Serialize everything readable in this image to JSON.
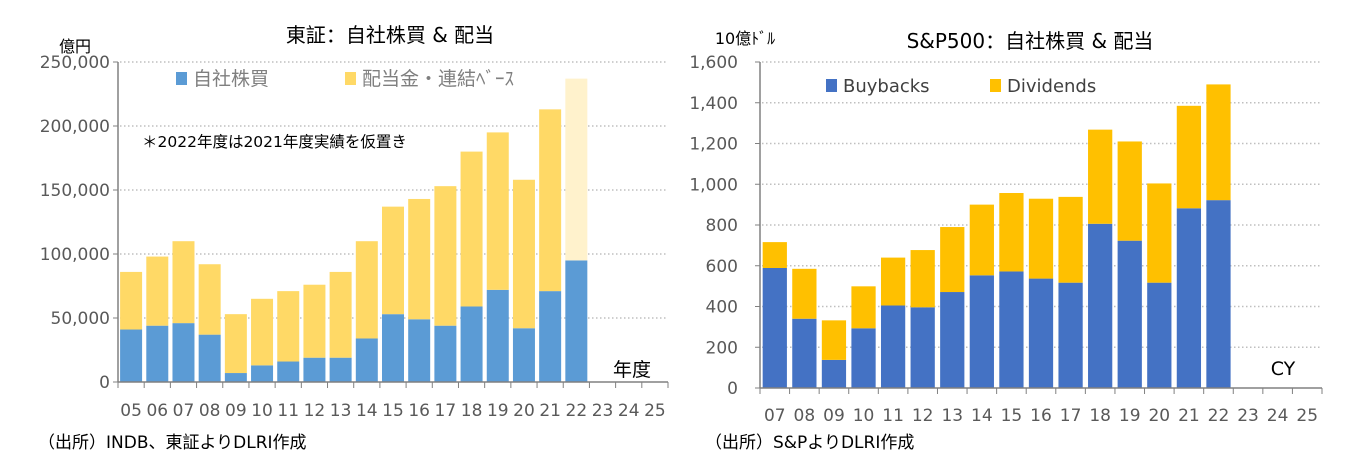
{
  "chart_data": [
    {
      "type": "bar",
      "stacked": true,
      "title": "東証：自社株買 & 配当",
      "ylabel": "億円",
      "xlabel": "年度",
      "note": "＊2022年度は2021年度実績を仮置き",
      "source": "（出所）INDB、東証よりDLRI作成",
      "ylim": [
        0,
        250000
      ],
      "yticks": [
        "0",
        "50,000",
        "100,000",
        "150,000",
        "200,000",
        "250,000"
      ],
      "ytick_values": [
        0,
        50000,
        100000,
        150000,
        200000,
        250000
      ],
      "grid": true,
      "legend": "top",
      "categories": [
        "05",
        "06",
        "07",
        "08",
        "09",
        "10",
        "11",
        "12",
        "13",
        "14",
        "15",
        "16",
        "17",
        "18",
        "19",
        "20",
        "21",
        "22",
        "23",
        "24",
        "25"
      ],
      "series": [
        {
          "name": "自社株買",
          "color": "#5B9BD5",
          "values": [
            41000,
            44000,
            46000,
            37000,
            7000,
            13000,
            16000,
            19000,
            19000,
            34000,
            53000,
            49000,
            44000,
            59000,
            72000,
            42000,
            71000,
            95000,
            null,
            null,
            null
          ]
        },
        {
          "name": "配当金・連結ﾍﾞｰｽ",
          "color": "#FFD966",
          "placeholder_color": "#FFF2CC",
          "values": [
            45000,
            54000,
            64000,
            55000,
            46000,
            52000,
            55000,
            57000,
            67000,
            76000,
            84000,
            94000,
            109000,
            121000,
            123000,
            116000,
            142000,
            142000,
            null,
            null,
            null
          ]
        }
      ]
    },
    {
      "type": "bar",
      "stacked": true,
      "title": "S&P500：自社株買 & 配当",
      "ylabel": "10億ﾄﾞﾙ",
      "xlabel": "CY",
      "source": "（出所）S&PよりDLRI作成",
      "ylim": [
        0,
        1600
      ],
      "yticks": [
        "0",
        "200",
        "400",
        "600",
        "800",
        "1,000",
        "1,200",
        "1,400",
        "1,600"
      ],
      "ytick_values": [
        0,
        200,
        400,
        600,
        800,
        1000,
        1200,
        1400,
        1600
      ],
      "grid": true,
      "legend": "top",
      "categories": [
        "07",
        "08",
        "09",
        "10",
        "11",
        "12",
        "13",
        "14",
        "15",
        "16",
        "17",
        "18",
        "19",
        "20",
        "21",
        "22",
        "23",
        "24",
        "25"
      ],
      "series": [
        {
          "name": "Buybacks",
          "color": "#4472C4",
          "values": [
            589,
            340,
            138,
            293,
            405,
            396,
            471,
            553,
            572,
            537,
            517,
            806,
            723,
            517,
            882,
            922,
            null,
            null,
            null
          ]
        },
        {
          "name": "Dividends",
          "color": "#FFC000",
          "values": [
            127,
            245,
            194,
            206,
            235,
            281,
            319,
            347,
            385,
            392,
            421,
            462,
            487,
            487,
            503,
            568,
            null,
            null,
            null
          ]
        }
      ]
    }
  ]
}
